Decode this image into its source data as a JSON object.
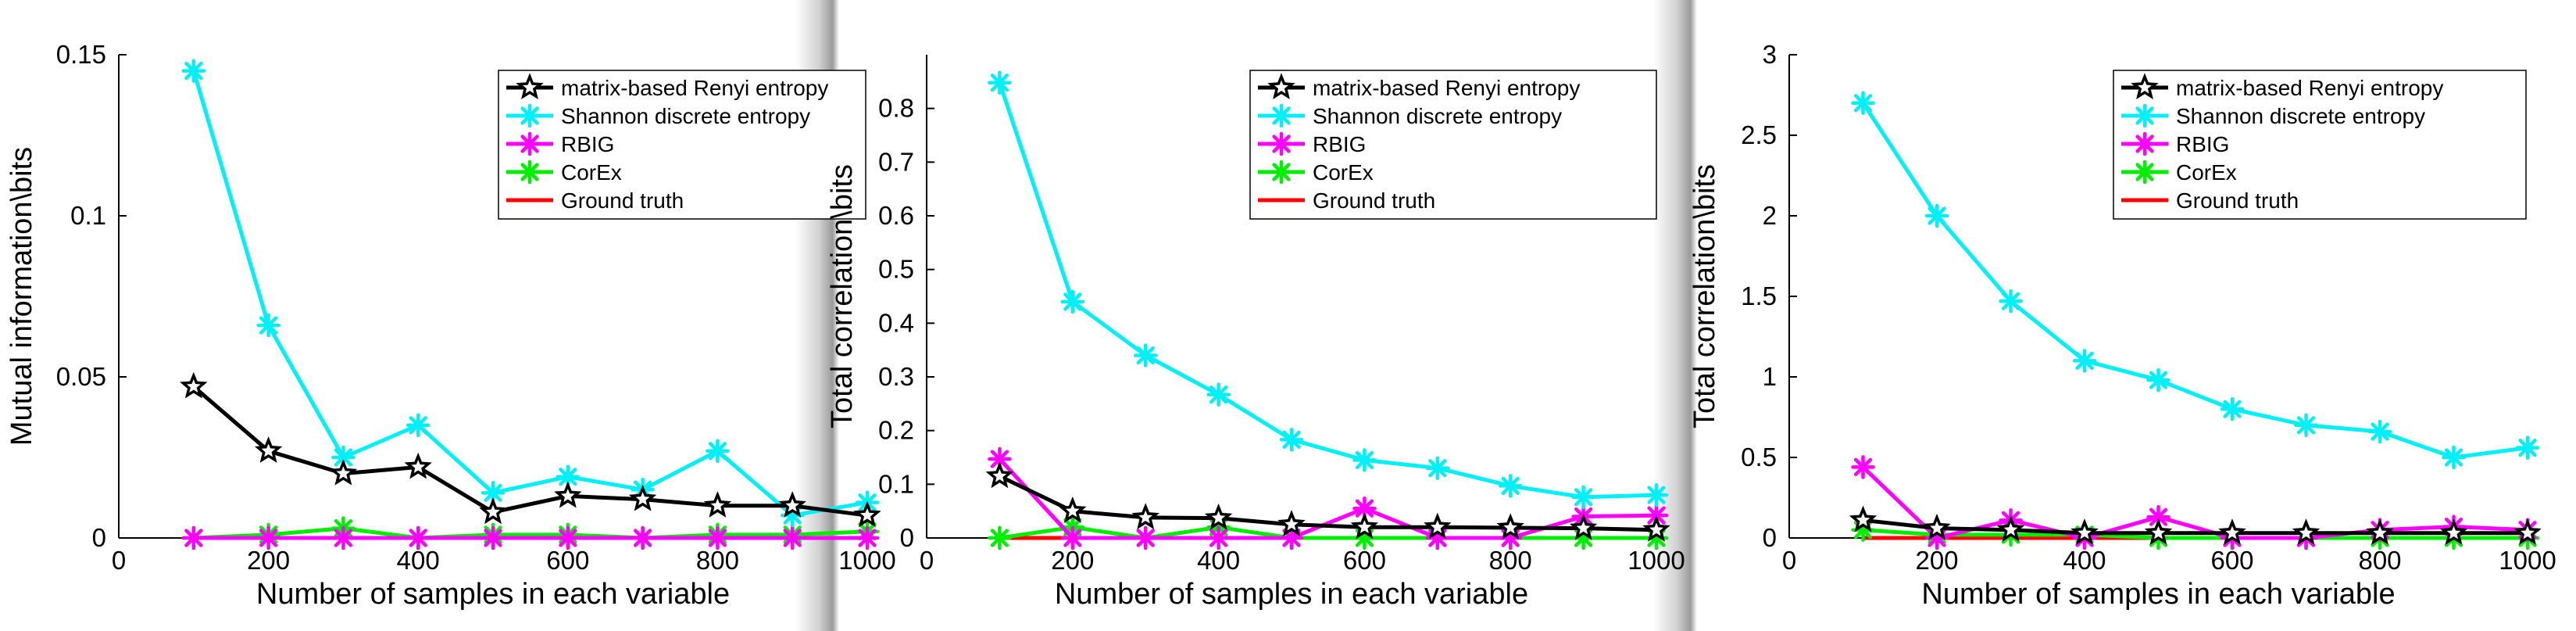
{
  "chart_data": [
    {
      "type": "line",
      "title": "",
      "xlabel": "Number of samples in each variable",
      "ylabel": "Mutual information\\bits",
      "xlim": [
        0,
        1000
      ],
      "ylim": [
        0,
        0.15
      ],
      "xticks": [
        0,
        200,
        400,
        600,
        800,
        1000
      ],
      "xtick_labels": [
        "0",
        "200",
        "400",
        "600",
        "800",
        "1000"
      ],
      "yticks": [
        0,
        0.05,
        0.1,
        0.15
      ],
      "ytick_labels": [
        "0",
        "0.05",
        "0.1",
        "0.15"
      ],
      "grid": false,
      "legend_position": "top-right",
      "x": [
        100,
        200,
        300,
        400,
        500,
        600,
        700,
        800,
        900,
        1000
      ],
      "series": [
        {
          "name": "matrix-based Renyi entropy",
          "color": "#000000",
          "marker": "star",
          "values": [
            0.047,
            0.027,
            0.02,
            0.022,
            0.008,
            0.013,
            0.012,
            0.01,
            0.01,
            0.007
          ]
        },
        {
          "name": "Shannon discrete entropy",
          "color": "#00f0f8",
          "marker": "asterisk",
          "values": [
            0.145,
            0.066,
            0.025,
            0.035,
            0.014,
            0.019,
            0.015,
            0.027,
            0.007,
            0.011
          ]
        },
        {
          "name": "RBIG",
          "color": "#ff00ff",
          "marker": "asterisk",
          "values": [
            0.0,
            0.0,
            0.0,
            0.0,
            0.0,
            0.0,
            0.0,
            0.0,
            0.0,
            0.0
          ]
        },
        {
          "name": "CorEx",
          "color": "#00ee00",
          "marker": "asterisk",
          "values": [
            0.0,
            0.001,
            0.003,
            0.0,
            0.001,
            0.001,
            0.0,
            0.001,
            0.001,
            0.002
          ]
        },
        {
          "name": "Ground truth",
          "color": "#ff0000",
          "marker": "none",
          "values": [
            0,
            0,
            0,
            0,
            0,
            0,
            0,
            0,
            0,
            0
          ]
        }
      ]
    },
    {
      "type": "line",
      "title": "",
      "xlabel": "Number of samples in each variable",
      "ylabel": "Total correlation\\bits",
      "xlim": [
        0,
        1000
      ],
      "ylim": [
        0,
        0.9
      ],
      "xticks": [
        0,
        200,
        400,
        600,
        800,
        1000
      ],
      "xtick_labels": [
        "0",
        "200",
        "400",
        "600",
        "800",
        "1000"
      ],
      "yticks": [
        0,
        0.1,
        0.2,
        0.3,
        0.4,
        0.5,
        0.6,
        0.7,
        0.8
      ],
      "ytick_labels": [
        "0",
        "0.1",
        "0.2",
        "0.3",
        "0.4",
        "0.5",
        "0.6",
        "0.7",
        "0.8"
      ],
      "grid": false,
      "legend_position": "top-right",
      "x": [
        100,
        200,
        300,
        400,
        500,
        600,
        700,
        800,
        900,
        1000
      ],
      "series": [
        {
          "name": "matrix-based Renyi entropy",
          "color": "#000000",
          "marker": "star",
          "values": [
            0.115,
            0.05,
            0.038,
            0.037,
            0.025,
            0.02,
            0.02,
            0.019,
            0.018,
            0.015
          ]
        },
        {
          "name": "Shannon discrete entropy",
          "color": "#00f0f8",
          "marker": "asterisk",
          "values": [
            0.848,
            0.44,
            0.34,
            0.267,
            0.183,
            0.145,
            0.13,
            0.097,
            0.076,
            0.08
          ]
        },
        {
          "name": "RBIG",
          "color": "#ff00ff",
          "marker": "asterisk",
          "values": [
            0.147,
            0.0,
            0.0,
            0.0,
            0.0,
            0.055,
            0.0,
            0.0,
            0.04,
            0.042
          ]
        },
        {
          "name": "CorEx",
          "color": "#00ee00",
          "marker": "asterisk",
          "values": [
            0.0,
            0.02,
            0.0,
            0.02,
            0.0,
            0.0,
            0.0,
            0.0,
            0.0,
            0.0
          ]
        },
        {
          "name": "Ground truth",
          "color": "#ff0000",
          "marker": "none",
          "values": [
            0,
            0,
            0,
            0,
            0,
            0,
            0,
            0,
            0,
            0
          ]
        }
      ]
    },
    {
      "type": "line",
      "title": "",
      "xlabel": "Number of samples in each variable",
      "ylabel": "Total correlation\\bits",
      "xlim": [
        0,
        1000
      ],
      "ylim": [
        0,
        3
      ],
      "xticks": [
        0,
        200,
        400,
        600,
        800,
        1000
      ],
      "xtick_labels": [
        "0",
        "200",
        "400",
        "600",
        "800",
        "1000"
      ],
      "yticks": [
        0,
        0.5,
        1,
        1.5,
        2,
        2.5,
        3
      ],
      "ytick_labels": [
        "0",
        "0.5",
        "1",
        "1.5",
        "2",
        "2.5",
        "3"
      ],
      "grid": false,
      "legend_position": "top-right",
      "x": [
        100,
        200,
        300,
        400,
        500,
        600,
        700,
        800,
        900,
        1000
      ],
      "series": [
        {
          "name": "matrix-based Renyi entropy",
          "color": "#000000",
          "marker": "star",
          "values": [
            0.11,
            0.06,
            0.05,
            0.03,
            0.03,
            0.03,
            0.03,
            0.03,
            0.03,
            0.03
          ]
        },
        {
          "name": "Shannon discrete entropy",
          "color": "#00f0f8",
          "marker": "asterisk",
          "values": [
            2.7,
            2.0,
            1.47,
            1.1,
            0.98,
            0.8,
            0.7,
            0.66,
            0.5,
            0.56
          ]
        },
        {
          "name": "RBIG",
          "color": "#ff00ff",
          "marker": "asterisk",
          "values": [
            0.44,
            0.0,
            0.11,
            0.0,
            0.13,
            0.0,
            0.0,
            0.05,
            0.07,
            0.05
          ]
        },
        {
          "name": "CorEx",
          "color": "#00ee00",
          "marker": "asterisk",
          "values": [
            0.05,
            0.02,
            0.02,
            0.02,
            0.0,
            0.0,
            0.0,
            0.0,
            0.0,
            0.0
          ]
        },
        {
          "name": "Ground truth",
          "color": "#ff0000",
          "marker": "none",
          "values": [
            0,
            0,
            0,
            0,
            0,
            0,
            0,
            0,
            0,
            0
          ]
        }
      ]
    }
  ]
}
